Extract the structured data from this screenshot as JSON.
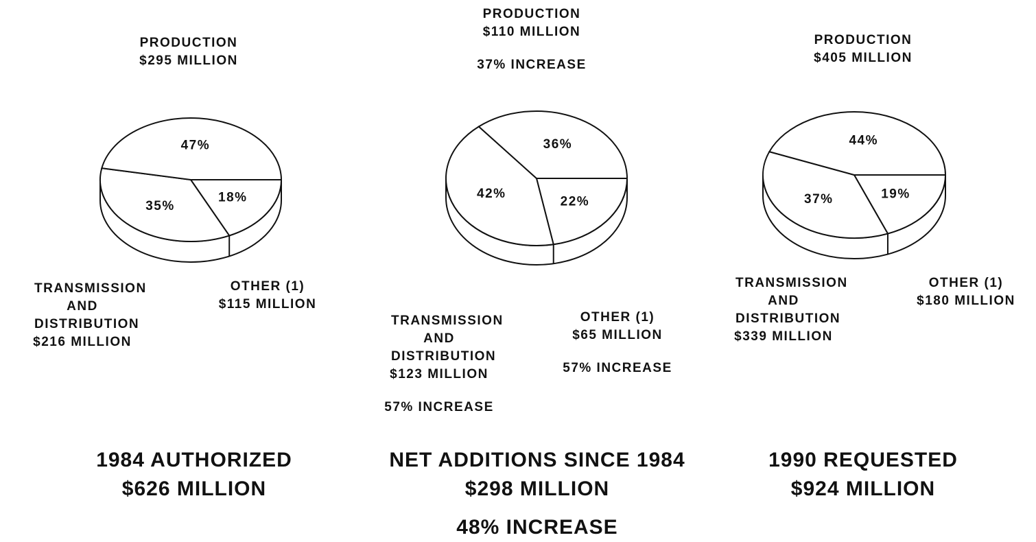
{
  "chart_data": [
    {
      "type": "pie",
      "title": "1984 AUTHORIZED",
      "subtitle": "$626 MILLION",
      "categories": [
        "PRODUCTION",
        "TRANSMISSION AND DISTRIBUTION",
        "OTHER (1)"
      ],
      "values": [
        47,
        35,
        18
      ],
      "value_labels": [
        "47%",
        "35%",
        "18%"
      ],
      "amount_labels": [
        "$295 MILLION",
        "$216 MILLION",
        "$115 MILLION"
      ],
      "color": "#ffffff"
    },
    {
      "type": "pie",
      "title": "NET ADDITIONS SINCE 1984",
      "subtitle": "$298 MILLION",
      "note": "48% INCREASE",
      "categories": [
        "PRODUCTION",
        "TRANSMISSION AND DISTRIBUTION",
        "OTHER (1)"
      ],
      "values": [
        36,
        42,
        22
      ],
      "value_labels": [
        "36%",
        "42%",
        "22%"
      ],
      "amount_labels": [
        "$110 MILLION",
        "$123 MILLION",
        "$65 MILLION"
      ],
      "increase_labels": [
        "37% INCREASE",
        "57% INCREASE",
        "57% INCREASE"
      ],
      "color": "#ffffff"
    },
    {
      "type": "pie",
      "title": "1990 REQUESTED",
      "subtitle": "$924 MILLION",
      "categories": [
        "PRODUCTION",
        "TRANSMISSION AND DISTRIBUTION",
        "OTHER (1)"
      ],
      "values": [
        44,
        37,
        19
      ],
      "value_labels": [
        "44%",
        "37%",
        "19%"
      ],
      "amount_labels": [
        "$405 MILLION",
        "$339 MILLION",
        "$180 MILLION"
      ],
      "color": "#ffffff"
    }
  ]
}
